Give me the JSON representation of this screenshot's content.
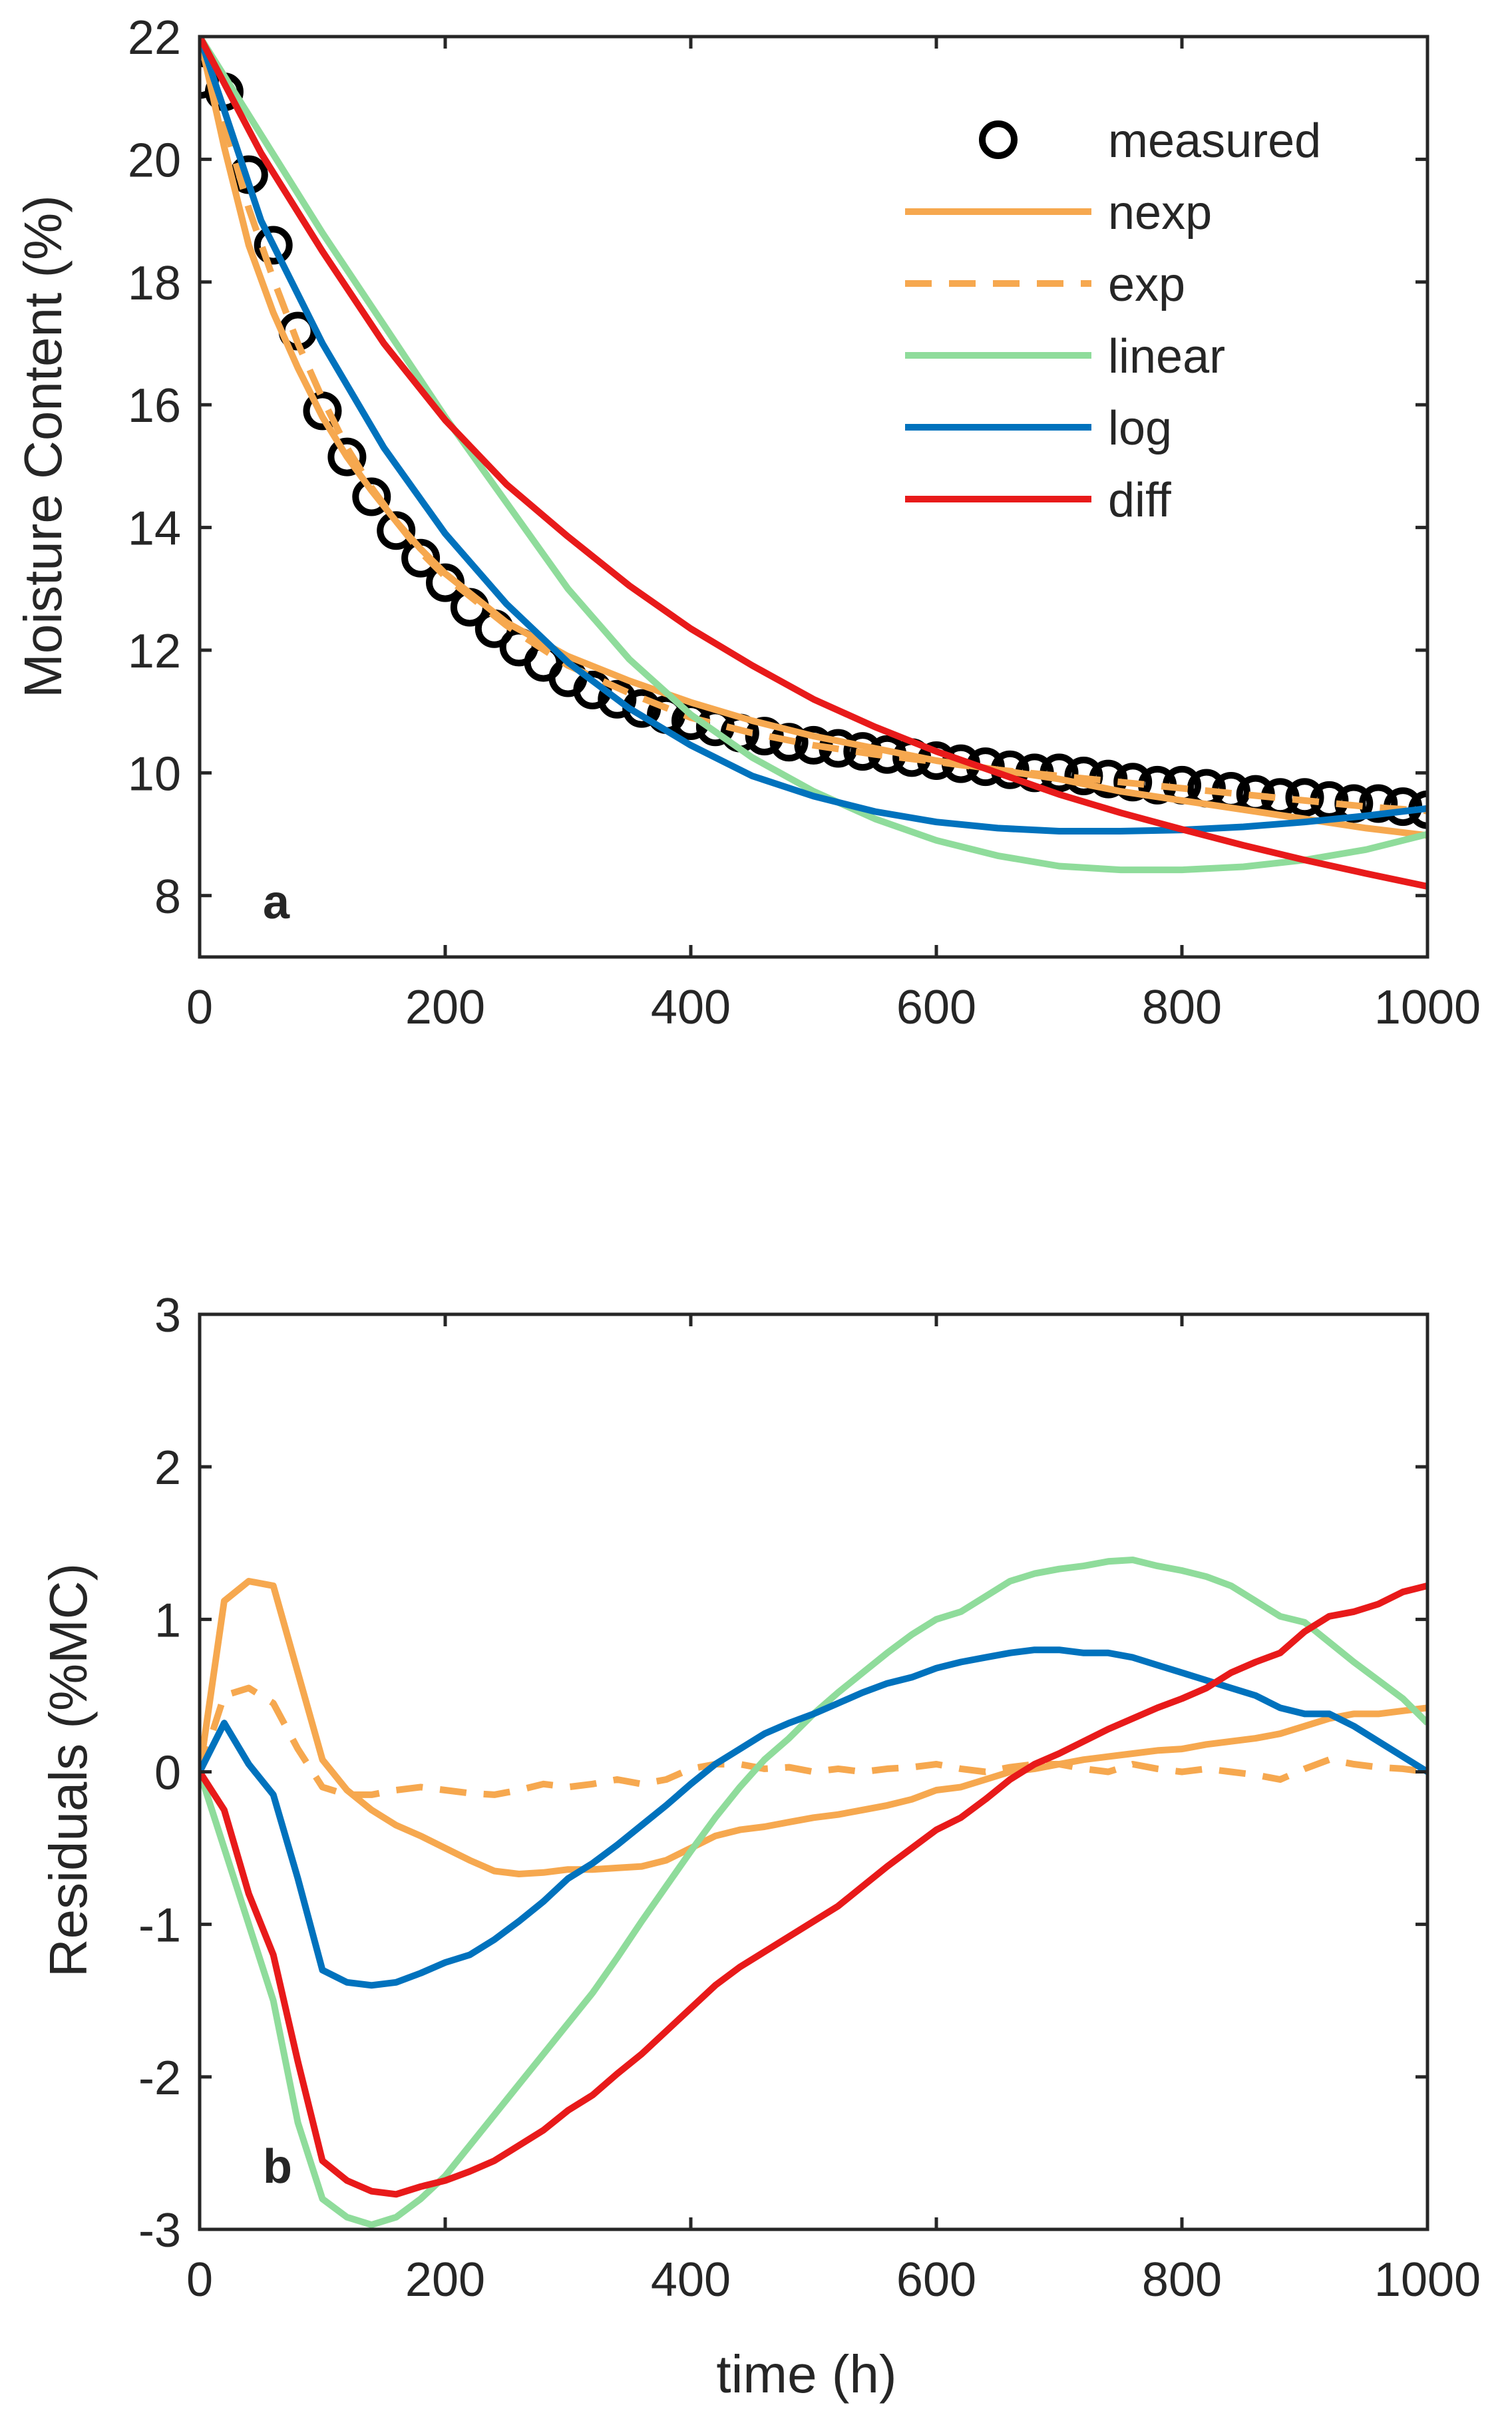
{
  "chart_data": [
    {
      "type": "line",
      "panel_label": "a",
      "xlabel": "",
      "ylabel": "Moisture Content (%)",
      "xlim": [
        0,
        1000
      ],
      "ylim": [
        7,
        22
      ],
      "xticks": [
        "0",
        "200",
        "400",
        "600",
        "800",
        "1000"
      ],
      "yticks": [
        "8",
        "10",
        "12",
        "14",
        "16",
        "18",
        "20",
        "22"
      ],
      "legend_position": "top-right",
      "series": [
        {
          "name": "measured",
          "marker": "circle",
          "color": "#000000",
          "dash": "none",
          "x": [
            0,
            20,
            40,
            60,
            80,
            100,
            120,
            140,
            160,
            180,
            200,
            220,
            240,
            260,
            280,
            300,
            320,
            340,
            360,
            380,
            400,
            420,
            440,
            460,
            480,
            500,
            520,
            540,
            560,
            580,
            600,
            620,
            640,
            660,
            680,
            700,
            720,
            740,
            760,
            780,
            800,
            820,
            840,
            860,
            880,
            900,
            920,
            940,
            960,
            980,
            1000
          ],
          "y": [
            21.3,
            21.1,
            19.75,
            18.6,
            17.2,
            15.9,
            15.15,
            14.5,
            13.95,
            13.5,
            13.1,
            12.7,
            12.35,
            12.05,
            11.8,
            11.55,
            11.35,
            11.2,
            11.05,
            10.95,
            10.85,
            10.75,
            10.65,
            10.6,
            10.5,
            10.45,
            10.4,
            10.35,
            10.3,
            10.25,
            10.2,
            10.15,
            10.1,
            10.05,
            10.0,
            10.0,
            9.95,
            9.9,
            9.85,
            9.8,
            9.8,
            9.75,
            9.7,
            9.65,
            9.6,
            9.6,
            9.55,
            9.5,
            9.5,
            9.45,
            9.4
          ]
        },
        {
          "name": "nexp",
          "color": "#F6A84F",
          "dash": "solid",
          "x": [
            0,
            20,
            40,
            60,
            80,
            100,
            120,
            140,
            160,
            180,
            200,
            250,
            300,
            350,
            400,
            450,
            500,
            550,
            600,
            650,
            700,
            750,
            800,
            850,
            900,
            950,
            1000
          ],
          "y": [
            22,
            20.2,
            18.6,
            17.5,
            16.6,
            15.8,
            15.15,
            14.6,
            14.1,
            13.65,
            13.25,
            12.45,
            11.9,
            11.5,
            11.15,
            10.85,
            10.6,
            10.4,
            10.2,
            10.05,
            9.9,
            9.7,
            9.55,
            9.4,
            9.25,
            9.1,
            8.98
          ]
        },
        {
          "name": "exp",
          "color": "#F6A84F",
          "dash": "dashed",
          "x": [
            0,
            20,
            40,
            60,
            80,
            100,
            120,
            140,
            160,
            180,
            200,
            250,
            300,
            350,
            400,
            450,
            500,
            550,
            600,
            650,
            700,
            750,
            800,
            850,
            900,
            950,
            1000
          ],
          "y": [
            22,
            20.6,
            19.2,
            18.05,
            17.0,
            16.1,
            15.3,
            14.65,
            14.1,
            13.6,
            13.2,
            12.4,
            11.75,
            11.3,
            10.9,
            10.65,
            10.45,
            10.3,
            10.18,
            10.05,
            9.95,
            9.85,
            9.75,
            9.65,
            9.55,
            9.45,
            9.38
          ]
        },
        {
          "name": "linear",
          "color": "#8FDC9B",
          "dash": "solid",
          "x": [
            0,
            50,
            100,
            150,
            200,
            250,
            300,
            350,
            400,
            450,
            500,
            550,
            600,
            650,
            700,
            750,
            800,
            850,
            900,
            950,
            1000
          ],
          "y": [
            22,
            20.4,
            18.8,
            17.3,
            15.8,
            14.4,
            13.0,
            11.85,
            10.95,
            10.25,
            9.7,
            9.25,
            8.9,
            8.65,
            8.48,
            8.42,
            8.42,
            8.47,
            8.58,
            8.75,
            9.0
          ]
        },
        {
          "name": "log",
          "color": "#0072BD",
          "dash": "solid",
          "x": [
            0,
            50,
            100,
            150,
            200,
            250,
            300,
            350,
            400,
            450,
            500,
            550,
            600,
            650,
            700,
            750,
            800,
            850,
            900,
            950,
            1000
          ],
          "y": [
            22,
            19.0,
            17.0,
            15.3,
            13.9,
            12.75,
            11.8,
            11.05,
            10.45,
            9.95,
            9.62,
            9.37,
            9.2,
            9.1,
            9.05,
            9.05,
            9.07,
            9.12,
            9.2,
            9.3,
            9.42
          ]
        },
        {
          "name": "diff",
          "color": "#E81A1A",
          "dash": "solid",
          "x": [
            0,
            50,
            100,
            150,
            200,
            250,
            300,
            350,
            400,
            450,
            500,
            550,
            600,
            650,
            700,
            750,
            800,
            850,
            900,
            950,
            1000
          ],
          "y": [
            22,
            20.1,
            18.5,
            17.0,
            15.75,
            14.7,
            13.85,
            13.05,
            12.35,
            11.75,
            11.2,
            10.75,
            10.35,
            10.0,
            9.65,
            9.35,
            9.08,
            8.82,
            8.58,
            8.36,
            8.15
          ]
        }
      ]
    },
    {
      "type": "line",
      "panel_label": "b",
      "xlabel": "time (h)",
      "ylabel": "Residuals (%MC)",
      "xlim": [
        0,
        1000
      ],
      "ylim": [
        -3,
        3
      ],
      "xticks": [
        "0",
        "200",
        "400",
        "600",
        "800",
        "1000"
      ],
      "yticks": [
        "-3",
        "-2",
        "-1",
        "0",
        "1",
        "2",
        "3"
      ],
      "series": [
        {
          "name": "nexp",
          "color": "#F6A84F",
          "dash": "solid",
          "x": [
            0,
            20,
            40,
            60,
            80,
            100,
            120,
            140,
            160,
            180,
            200,
            220,
            240,
            260,
            280,
            300,
            320,
            340,
            360,
            380,
            400,
            420,
            440,
            460,
            480,
            500,
            520,
            540,
            560,
            580,
            600,
            620,
            640,
            660,
            680,
            700,
            720,
            740,
            760,
            780,
            800,
            820,
            840,
            860,
            880,
            900,
            920,
            940,
            960,
            980,
            1000
          ],
          "y": [
            0,
            1.12,
            1.25,
            1.22,
            0.65,
            0.08,
            -0.12,
            -0.25,
            -0.35,
            -0.42,
            -0.5,
            -0.58,
            -0.65,
            -0.67,
            -0.66,
            -0.64,
            -0.64,
            -0.63,
            -0.62,
            -0.58,
            -0.5,
            -0.42,
            -0.38,
            -0.36,
            -0.33,
            -0.3,
            -0.28,
            -0.25,
            -0.22,
            -0.18,
            -0.12,
            -0.1,
            -0.05,
            0,
            0.02,
            0.05,
            0.08,
            0.1,
            0.12,
            0.14,
            0.15,
            0.18,
            0.2,
            0.22,
            0.25,
            0.3,
            0.35,
            0.38,
            0.38,
            0.4,
            0.42
          ]
        },
        {
          "name": "exp",
          "color": "#F6A84F",
          "dash": "dashed",
          "x": [
            0,
            20,
            40,
            60,
            80,
            100,
            120,
            140,
            160,
            180,
            200,
            220,
            240,
            260,
            280,
            300,
            320,
            340,
            360,
            380,
            400,
            420,
            440,
            460,
            480,
            500,
            520,
            540,
            560,
            580,
            600,
            620,
            640,
            660,
            680,
            700,
            720,
            740,
            760,
            780,
            800,
            820,
            840,
            860,
            880,
            900,
            920,
            940,
            960,
            980,
            1000
          ],
          "y": [
            0,
            0.5,
            0.55,
            0.45,
            0.15,
            -0.1,
            -0.15,
            -0.15,
            -0.12,
            -0.1,
            -0.12,
            -0.14,
            -0.15,
            -0.12,
            -0.08,
            -0.1,
            -0.08,
            -0.05,
            -0.08,
            -0.05,
            0.02,
            0.05,
            0.05,
            0.02,
            0.03,
            0,
            0.02,
            0,
            0.02,
            0.03,
            0.05,
            0.02,
            0,
            0.03,
            0.05,
            0.05,
            0.02,
            0,
            0.05,
            0.02,
            0,
            0.02,
            0,
            -0.02,
            -0.05,
            0.02,
            0.08,
            0.05,
            0.03,
            0.02,
            0
          ]
        },
        {
          "name": "linear",
          "color": "#8FDC9B",
          "dash": "solid",
          "x": [
            0,
            20,
            40,
            60,
            80,
            100,
            120,
            140,
            160,
            180,
            200,
            220,
            240,
            260,
            280,
            300,
            320,
            340,
            360,
            380,
            400,
            420,
            440,
            460,
            480,
            500,
            520,
            540,
            560,
            580,
            600,
            620,
            640,
            660,
            680,
            700,
            720,
            740,
            760,
            780,
            800,
            820,
            840,
            860,
            880,
            900,
            920,
            940,
            960,
            980,
            1000
          ],
          "y": [
            0,
            -0.5,
            -1.0,
            -1.5,
            -2.3,
            -2.8,
            -2.92,
            -2.97,
            -2.92,
            -2.8,
            -2.65,
            -2.45,
            -2.25,
            -2.05,
            -1.85,
            -1.65,
            -1.45,
            -1.22,
            -0.98,
            -0.75,
            -0.52,
            -0.3,
            -0.1,
            0.08,
            0.22,
            0.38,
            0.52,
            0.65,
            0.78,
            0.9,
            1.0,
            1.05,
            1.15,
            1.25,
            1.3,
            1.33,
            1.35,
            1.38,
            1.39,
            1.35,
            1.32,
            1.28,
            1.22,
            1.12,
            1.02,
            0.98,
            0.85,
            0.72,
            0.6,
            0.48,
            0.32
          ]
        },
        {
          "name": "log",
          "color": "#0072BD",
          "dash": "solid",
          "x": [
            0,
            20,
            40,
            60,
            80,
            100,
            120,
            140,
            160,
            180,
            200,
            220,
            240,
            260,
            280,
            300,
            320,
            340,
            360,
            380,
            400,
            420,
            440,
            460,
            480,
            500,
            520,
            540,
            560,
            580,
            600,
            620,
            640,
            660,
            680,
            700,
            720,
            740,
            760,
            780,
            800,
            820,
            840,
            860,
            880,
            900,
            920,
            940,
            960,
            980,
            1000
          ],
          "y": [
            0,
            0.32,
            0.05,
            -0.15,
            -0.7,
            -1.3,
            -1.38,
            -1.4,
            -1.38,
            -1.32,
            -1.25,
            -1.2,
            -1.1,
            -0.98,
            -0.85,
            -0.7,
            -0.6,
            -0.48,
            -0.35,
            -0.22,
            -0.08,
            0.05,
            0.15,
            0.25,
            0.32,
            0.38,
            0.45,
            0.52,
            0.58,
            0.62,
            0.68,
            0.72,
            0.75,
            0.78,
            0.8,
            0.8,
            0.78,
            0.78,
            0.75,
            0.7,
            0.65,
            0.6,
            0.55,
            0.5,
            0.42,
            0.38,
            0.38,
            0.3,
            0.2,
            0.1,
            0.0
          ]
        },
        {
          "name": "diff",
          "color": "#E81A1A",
          "dash": "solid",
          "x": [
            0,
            20,
            40,
            60,
            80,
            100,
            120,
            140,
            160,
            180,
            200,
            220,
            240,
            260,
            280,
            300,
            320,
            340,
            360,
            380,
            400,
            420,
            440,
            460,
            480,
            500,
            520,
            540,
            560,
            580,
            600,
            620,
            640,
            660,
            680,
            700,
            720,
            740,
            760,
            780,
            800,
            820,
            840,
            860,
            880,
            900,
            920,
            940,
            960,
            980,
            1000
          ],
          "y": [
            0,
            -0.25,
            -0.8,
            -1.2,
            -1.9,
            -2.55,
            -2.68,
            -2.75,
            -2.77,
            -2.72,
            -2.68,
            -2.62,
            -2.55,
            -2.45,
            -2.35,
            -2.22,
            -2.12,
            -1.98,
            -1.85,
            -1.7,
            -1.55,
            -1.4,
            -1.28,
            -1.18,
            -1.08,
            -0.98,
            -0.88,
            -0.75,
            -0.62,
            -0.5,
            -0.38,
            -0.3,
            -0.18,
            -0.05,
            0.05,
            0.12,
            0.2,
            0.28,
            0.35,
            0.42,
            0.48,
            0.55,
            0.65,
            0.72,
            0.78,
            0.92,
            1.02,
            1.05,
            1.1,
            1.18,
            1.22
          ]
        }
      ]
    }
  ]
}
